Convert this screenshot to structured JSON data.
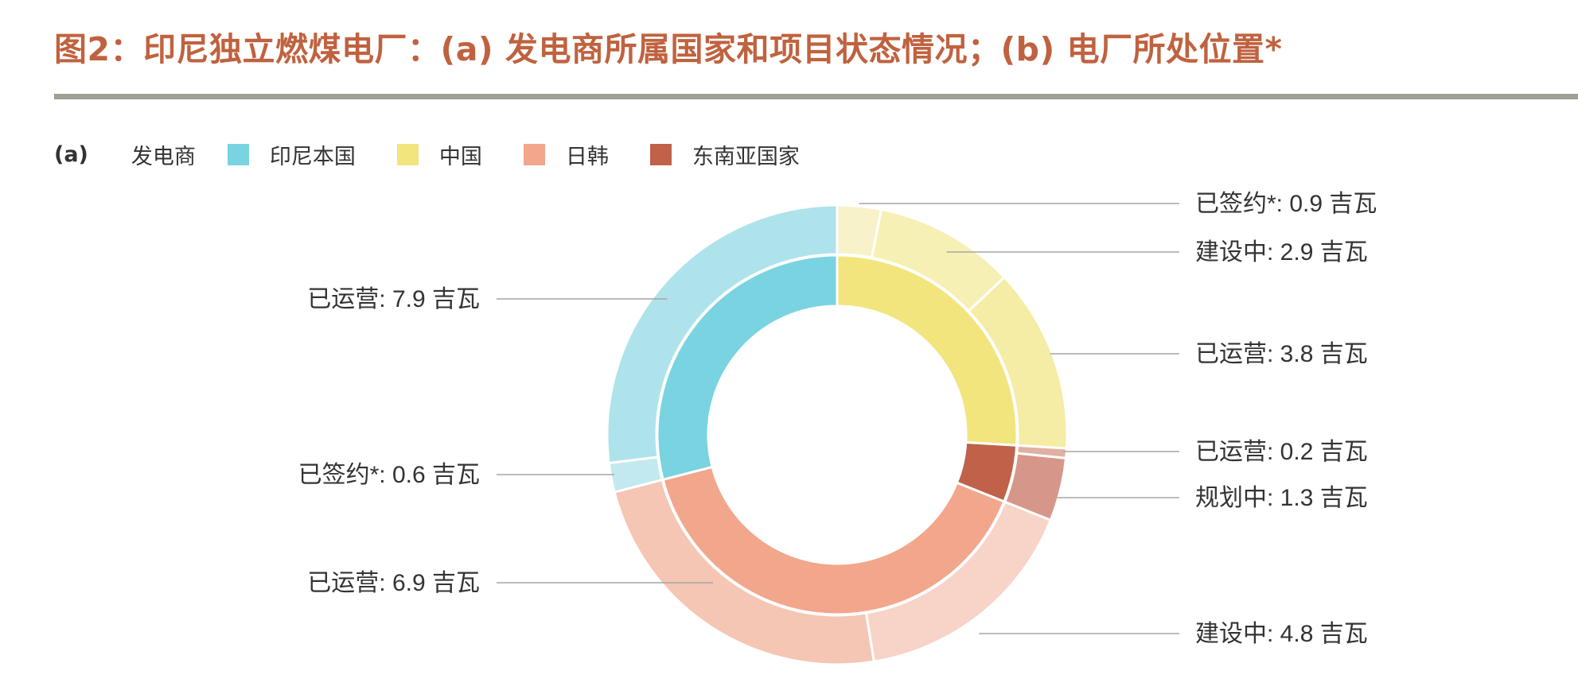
{
  "title": "图2：印尼独立燃煤电厂：(a) 发电商所属国家和项目状态情况；(b) 电厂所处位置*",
  "legend": {
    "part_label": "(a)",
    "group_label": "发电商",
    "items": [
      {
        "label": "印尼本国",
        "color": "#7ad3e0"
      },
      {
        "label": "中国",
        "color": "#f2e57d"
      },
      {
        "label": "日韩",
        "color": "#f2a68b"
      },
      {
        "label": "东南亚国家",
        "color": "#c0614a"
      }
    ]
  },
  "chart_data": {
    "type": "pie",
    "subtype": "nested-donut",
    "unit": "吉瓦",
    "inner_ring": {
      "categories": [
        "中国",
        "东南亚国家",
        "日韩",
        "印尼本国"
      ],
      "values": [
        7.6,
        1.5,
        11.7,
        8.5
      ],
      "colors": [
        "#f2e57d",
        "#c0614a",
        "#f2a68b",
        "#7ad3e0"
      ]
    },
    "outer_ring": {
      "segments": [
        {
          "group": "中国",
          "label": "已签约*: 0.9 吉瓦",
          "value": 0.9,
          "color": "#f7f2c9"
        },
        {
          "group": "中国",
          "label": "建设中: 2.9 吉瓦",
          "value": 2.9,
          "color": "#f7f0b4"
        },
        {
          "group": "中国",
          "label": "已运营: 3.8 吉瓦",
          "value": 3.8,
          "color": "#f5eca5"
        },
        {
          "group": "东南亚国家",
          "label": "已运营: 0.2 吉瓦",
          "value": 0.2,
          "color": "#e0b0a2"
        },
        {
          "group": "东南亚国家",
          "label": "规划中: 1.3 吉瓦",
          "value": 1.3,
          "color": "#d6978a"
        },
        {
          "group": "日韩",
          "label": "建设中: 4.8 吉瓦",
          "value": 4.8,
          "color": "#f7d4c7"
        },
        {
          "group": "日韩",
          "label": "已运营: 6.9 吉瓦",
          "value": 6.9,
          "color": "#f5c6b4"
        },
        {
          "group": "印尼本国",
          "label": "已签约*: 0.6 吉瓦",
          "value": 0.6,
          "color": "#c2e9ef"
        },
        {
          "group": "印尼本国",
          "label": "已运营: 7.9 吉瓦",
          "value": 7.9,
          "color": "#aee3eb"
        }
      ]
    }
  }
}
